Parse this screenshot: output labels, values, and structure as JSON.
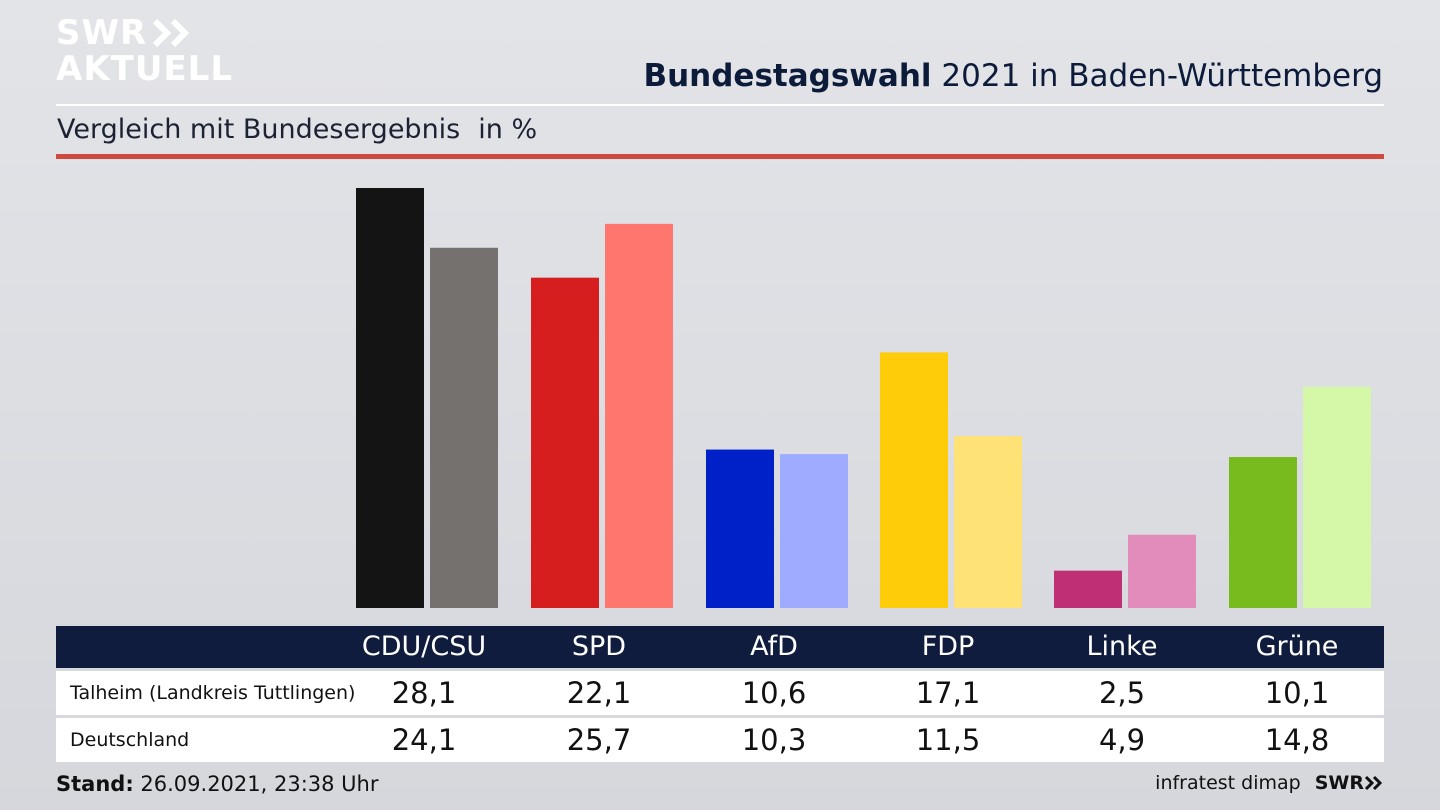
{
  "brand": {
    "logo_line1": "SWR",
    "logo_line2": "AKTUELL",
    "arrows_icon": "double-chevron-right-icon"
  },
  "header": {
    "title_bold": "Bundestagswahl",
    "title_rest": " 2021 in Baden-Württemberg"
  },
  "subheader": {
    "subtitle": "Vergleich mit Bundesergebnis",
    "unit": "in %"
  },
  "colors": {
    "header_rule": "#cd4a3c",
    "table_header": "#0f1c3d",
    "dark": [
      "#141414",
      "#d61e1e",
      "#0021c7",
      "#ffcc0a",
      "#bf2f75",
      "#78bb1e"
    ],
    "light": [
      "#74716f",
      "#ff766e",
      "#9fabff",
      "#ffe275",
      "#e18cbb",
      "#d5f7a8"
    ]
  },
  "chart_data": {
    "type": "bar",
    "title": "Bundestagswahl 2021 in Baden-Württemberg",
    "subtitle": "Vergleich mit Bundesergebnis",
    "ylabel": "in %",
    "categories": [
      "CDU/CSU",
      "SPD",
      "AfD",
      "FDP",
      "Linke",
      "Grüne"
    ],
    "series": [
      {
        "name": "Talheim (Landkreis Tuttlingen)",
        "values": [
          28.1,
          22.1,
          10.6,
          17.1,
          2.5,
          10.1
        ]
      },
      {
        "name": "Deutschland",
        "values": [
          24.1,
          25.7,
          10.3,
          11.5,
          4.9,
          14.8
        ]
      }
    ],
    "ylim": [
      0,
      28.1
    ],
    "grid": false,
    "legend": "table-below"
  },
  "table": {
    "rows": [
      {
        "label": "Talheim (Landkreis Tuttlingen)",
        "values": [
          "28,1",
          "22,1",
          "10,6",
          "17,1",
          "2,5",
          "10,1"
        ]
      },
      {
        "label": "Deutschland",
        "values": [
          "24,1",
          "25,7",
          "10,3",
          "11,5",
          "4,9",
          "14,8"
        ]
      }
    ]
  },
  "footer": {
    "stand_label": "Stand:",
    "stand_value": " 26.09.2021, 23:38 Uhr",
    "source": "infratest dimap",
    "source_brand": "SWR"
  }
}
